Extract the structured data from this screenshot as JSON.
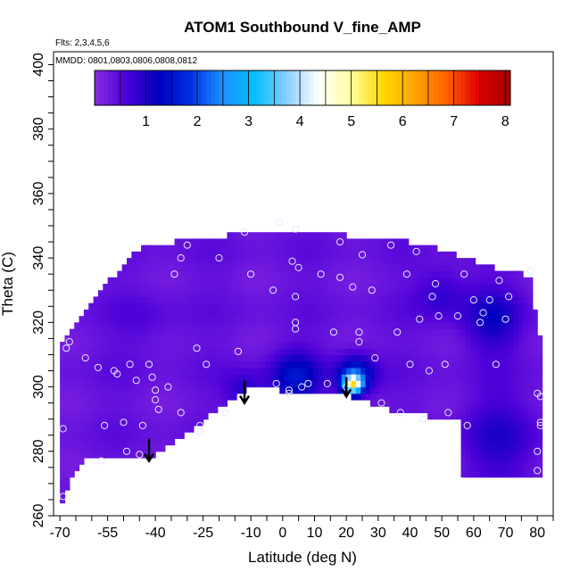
{
  "chart_data": {
    "type": "heatmap",
    "title": "ATOM1 Southbound V_fine_AMP",
    "flights_note": "Flts: 2,3,4,5,6",
    "mmdd_note": "MMDD: 0801,0803,0806,0808,0812",
    "xlabel": "Latitude (deg N)",
    "ylabel": "Theta (C)",
    "xlim": [
      -72,
      85
    ],
    "ylim": [
      260,
      404
    ],
    "x_ticks": [
      -70,
      -55,
      -40,
      -25,
      -10,
      0,
      10,
      20,
      30,
      40,
      50,
      60,
      70,
      80
    ],
    "x_tick_labels": [
      "-70",
      "-55",
      "-40",
      "-25",
      "-10",
      "0",
      "10",
      "20",
      "30",
      "40",
      "50",
      "60",
      "70",
      "80"
    ],
    "y_ticks": [
      260,
      280,
      300,
      320,
      340,
      360,
      380,
      400
    ],
    "y_tick_labels": [
      "260",
      "280",
      "300",
      "320",
      "340",
      "360",
      "380",
      "400"
    ],
    "colorbar": {
      "min": 0,
      "max": 8.1,
      "ticks": [
        1,
        2,
        3,
        4,
        5,
        6,
        7,
        8
      ],
      "tick_labels": [
        "1",
        "2",
        "3",
        "4",
        "5",
        "6",
        "7",
        "8"
      ],
      "colors": [
        "#8a2be2",
        "#4b00d8",
        "#0000c0",
        "#0030e0",
        "#1e90ff",
        "#00bfff",
        "#87cefa",
        "#ffffff",
        "#ffffa0",
        "#ffd700",
        "#ffa500",
        "#ff6000",
        "#e00000",
        "#a00000"
      ]
    },
    "domain_upper": [
      [
        -70,
        313
      ],
      [
        -68,
        316
      ],
      [
        -64,
        322
      ],
      [
        -60,
        326
      ],
      [
        -56,
        332
      ],
      [
        -52,
        335
      ],
      [
        -48,
        341
      ],
      [
        -42,
        344
      ],
      [
        -34,
        345
      ],
      [
        -28,
        346
      ],
      [
        -18,
        347
      ],
      [
        -6,
        348
      ],
      [
        4,
        349
      ],
      [
        12,
        348
      ],
      [
        20,
        347
      ],
      [
        30,
        346
      ],
      [
        40,
        345
      ],
      [
        48,
        343
      ],
      [
        54,
        341
      ],
      [
        60,
        339
      ],
      [
        66,
        337
      ],
      [
        72,
        336
      ],
      [
        76,
        335
      ],
      [
        78,
        333
      ],
      [
        80,
        320
      ],
      [
        82,
        310
      ],
      [
        82,
        300
      ],
      [
        82,
        294
      ]
    ],
    "domain_lower": [
      [
        -70,
        263
      ],
      [
        -67,
        270
      ],
      [
        -62,
        277
      ],
      [
        -56,
        279
      ],
      [
        -48,
        279
      ],
      [
        -42,
        278
      ],
      [
        -30,
        286
      ],
      [
        -20,
        293
      ],
      [
        -12,
        299
      ],
      [
        -8,
        301
      ],
      [
        -4,
        300
      ],
      [
        2,
        298
      ],
      [
        10,
        299
      ],
      [
        18,
        298
      ],
      [
        24,
        296
      ],
      [
        30,
        294
      ],
      [
        38,
        292
      ],
      [
        46,
        291
      ],
      [
        52,
        290
      ],
      [
        56,
        290
      ],
      [
        56,
        272
      ],
      [
        62,
        272
      ],
      [
        70,
        272
      ],
      [
        78,
        272
      ],
      [
        82,
        274
      ],
      [
        82,
        294
      ]
    ],
    "background_value": 0.35,
    "features": [
      {
        "lat": 4,
        "theta": 303,
        "sx": 8,
        "sy": 8,
        "amp": 1.1
      },
      {
        "lat": -12,
        "theta": 299,
        "sx": 6,
        "sy": 6,
        "amp": 0.6
      },
      {
        "lat": 22,
        "theta": 301,
        "sx": 3,
        "sy": 3,
        "amp": 4.2
      },
      {
        "lat": 23,
        "theta": 304,
        "sx": 6,
        "sy": 6,
        "amp": 1.4
      },
      {
        "lat": 66,
        "theta": 321,
        "sx": 9,
        "sy": 10,
        "amp": 0.75
      },
      {
        "lat": 50,
        "theta": 329,
        "sx": 8,
        "sy": 8,
        "amp": 0.55
      },
      {
        "lat": 68,
        "theta": 284,
        "sx": 12,
        "sy": 14,
        "amp": 0.55
      },
      {
        "lat": -43,
        "theta": 320,
        "sx": 10,
        "sy": 10,
        "amp": 0.2
      }
    ],
    "markers": [
      [
        -69,
        266
      ],
      [
        -69,
        287
      ],
      [
        -68,
        312
      ],
      [
        -67,
        314
      ],
      [
        -62,
        309
      ],
      [
        -58,
        306
      ],
      [
        -56,
        288
      ],
      [
        -57,
        277
      ],
      [
        -53,
        305
      ],
      [
        -52,
        304
      ],
      [
        -50,
        289
      ],
      [
        -49,
        280
      ],
      [
        -48,
        307
      ],
      [
        -46,
        302
      ],
      [
        -45,
        279
      ],
      [
        -44,
        288
      ],
      [
        -42,
        307
      ],
      [
        -41,
        303
      ],
      [
        -40,
        299
      ],
      [
        -40,
        296
      ],
      [
        -39,
        293
      ],
      [
        -36,
        300
      ],
      [
        -34,
        335
      ],
      [
        -32,
        340
      ],
      [
        -32,
        292
      ],
      [
        -30,
        344
      ],
      [
        -27,
        312
      ],
      [
        -26,
        288
      ],
      [
        -26,
        286
      ],
      [
        -24,
        307
      ],
      [
        -20,
        340
      ],
      [
        -18,
        292
      ],
      [
        -14,
        311
      ],
      [
        -12,
        348
      ],
      [
        -10,
        335
      ],
      [
        -3,
        330
      ],
      [
        -2,
        301
      ],
      [
        -1,
        351
      ],
      [
        2,
        299
      ],
      [
        2,
        298
      ],
      [
        3,
        339
      ],
      [
        4,
        349
      ],
      [
        4,
        328
      ],
      [
        4,
        320
      ],
      [
        4,
        318
      ],
      [
        5,
        337
      ],
      [
        6,
        300
      ],
      [
        8,
        301
      ],
      [
        12,
        335
      ],
      [
        14,
        301
      ],
      [
        16,
        317
      ],
      [
        18,
        345
      ],
      [
        18,
        334
      ],
      [
        20,
        300
      ],
      [
        22,
        331
      ],
      [
        24,
        317
      ],
      [
        24,
        314
      ],
      [
        25,
        341
      ],
      [
        28,
        330
      ],
      [
        29,
        309
      ],
      [
        31,
        295
      ],
      [
        34,
        344
      ],
      [
        36,
        317
      ],
      [
        37,
        292
      ],
      [
        39,
        335
      ],
      [
        40,
        307
      ],
      [
        42,
        342
      ],
      [
        43,
        321
      ],
      [
        44,
        290
      ],
      [
        46,
        305
      ],
      [
        47,
        328
      ],
      [
        48,
        332
      ],
      [
        49,
        322
      ],
      [
        51,
        307
      ],
      [
        52,
        292
      ],
      [
        55,
        322
      ],
      [
        57,
        335
      ],
      [
        58,
        288
      ],
      [
        60,
        327
      ],
      [
        62,
        320
      ],
      [
        63,
        323
      ],
      [
        65,
        327
      ],
      [
        67,
        307
      ],
      [
        68,
        333
      ],
      [
        70,
        321
      ],
      [
        71,
        328
      ],
      [
        78,
        336
      ],
      [
        80,
        298
      ],
      [
        81,
        297
      ],
      [
        81,
        289
      ],
      [
        81,
        288
      ],
      [
        80,
        280
      ],
      [
        80,
        274
      ]
    ],
    "arrows": [
      [
        -42,
        284,
        277
      ],
      [
        -12,
        302,
        295
      ],
      [
        20,
        303,
        297
      ]
    ]
  }
}
